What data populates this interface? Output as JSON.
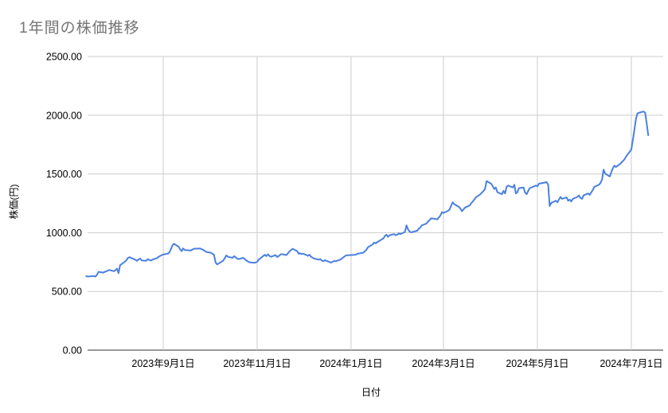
{
  "chart_data": {
    "type": "line",
    "title": "1年間の株価推移",
    "xlabel": "日付",
    "ylabel": "株価(円)",
    "ylim": [
      0,
      2500
    ],
    "grid": true,
    "legend_position": "none",
    "colors": {
      "line": "#4a80e0",
      "grid": "#cccccc",
      "baseline": "#333333",
      "tick_text": "#000000",
      "title_text": "#757575"
    },
    "y_ticks": [
      {
        "value": 0,
        "label": "0.00"
      },
      {
        "value": 500,
        "label": "500.00"
      },
      {
        "value": 1000,
        "label": "1000.00"
      },
      {
        "value": 1500,
        "label": "1500.00"
      },
      {
        "value": 2000,
        "label": "2000.00"
      },
      {
        "value": 2500,
        "label": "2500.00"
      }
    ],
    "x_ticks": [
      {
        "date": "2023-09-01",
        "label": "2023年9月1日"
      },
      {
        "date": "2023-11-01",
        "label": "2023年11月1日"
      },
      {
        "date": "2024-01-01",
        "label": "2024年1月1日"
      },
      {
        "date": "2024-03-01",
        "label": "2024年3月1日"
      },
      {
        "date": "2024-05-01",
        "label": "2024年5月1日"
      },
      {
        "date": "2024-07-01",
        "label": "2024年7月1日"
      }
    ],
    "series": [
      {
        "name": "株価",
        "points": [
          [
            "2023-07-13",
            630
          ],
          [
            "2023-07-14",
            627
          ],
          [
            "2023-07-18",
            631
          ],
          [
            "2023-07-19",
            626
          ],
          [
            "2023-07-20",
            642
          ],
          [
            "2023-07-21",
            667
          ],
          [
            "2023-07-24",
            660
          ],
          [
            "2023-07-25",
            666
          ],
          [
            "2023-07-26",
            671
          ],
          [
            "2023-07-27",
            677
          ],
          [
            "2023-07-28",
            682
          ],
          [
            "2023-07-31",
            672
          ],
          [
            "2023-08-01",
            680
          ],
          [
            "2023-08-02",
            694
          ],
          [
            "2023-08-03",
            655
          ],
          [
            "2023-08-04",
            723
          ],
          [
            "2023-08-07",
            752
          ],
          [
            "2023-08-08",
            764
          ],
          [
            "2023-08-09",
            784
          ],
          [
            "2023-08-10",
            791
          ],
          [
            "2023-08-14",
            768
          ],
          [
            "2023-08-15",
            761
          ],
          [
            "2023-08-16",
            773
          ],
          [
            "2023-08-17",
            780
          ],
          [
            "2023-08-18",
            764
          ],
          [
            "2023-08-21",
            761
          ],
          [
            "2023-08-22",
            775
          ],
          [
            "2023-08-23",
            768
          ],
          [
            "2023-08-24",
            762
          ],
          [
            "2023-08-25",
            770
          ],
          [
            "2023-08-28",
            784
          ],
          [
            "2023-08-29",
            795
          ],
          [
            "2023-08-30",
            802
          ],
          [
            "2023-08-31",
            809
          ],
          [
            "2023-09-01",
            814
          ],
          [
            "2023-09-04",
            822
          ],
          [
            "2023-09-05",
            832
          ],
          [
            "2023-09-06",
            859
          ],
          [
            "2023-09-07",
            893
          ],
          [
            "2023-09-08",
            905
          ],
          [
            "2023-09-11",
            881
          ],
          [
            "2023-09-12",
            859
          ],
          [
            "2023-09-13",
            843
          ],
          [
            "2023-09-14",
            866
          ],
          [
            "2023-09-15",
            852
          ],
          [
            "2023-09-19",
            848
          ],
          [
            "2023-09-20",
            857
          ],
          [
            "2023-09-21",
            863
          ],
          [
            "2023-09-25",
            866
          ],
          [
            "2023-09-26",
            859
          ],
          [
            "2023-09-27",
            854
          ],
          [
            "2023-09-28",
            845
          ],
          [
            "2023-09-29",
            836
          ],
          [
            "2023-10-02",
            829
          ],
          [
            "2023-10-03",
            820
          ],
          [
            "2023-10-04",
            812
          ],
          [
            "2023-10-05",
            746
          ],
          [
            "2023-10-06",
            730
          ],
          [
            "2023-10-10",
            762
          ],
          [
            "2023-10-11",
            784
          ],
          [
            "2023-10-12",
            807
          ],
          [
            "2023-10-13",
            795
          ],
          [
            "2023-10-16",
            786
          ],
          [
            "2023-10-17",
            800
          ],
          [
            "2023-10-18",
            791
          ],
          [
            "2023-10-19",
            780
          ],
          [
            "2023-10-20",
            775
          ],
          [
            "2023-10-23",
            786
          ],
          [
            "2023-10-24",
            775
          ],
          [
            "2023-10-25",
            764
          ],
          [
            "2023-10-26",
            755
          ],
          [
            "2023-10-27",
            748
          ],
          [
            "2023-10-30",
            744
          ],
          [
            "2023-10-31",
            746
          ],
          [
            "2023-11-01",
            752
          ],
          [
            "2023-11-02",
            770
          ],
          [
            "2023-11-06",
            812
          ],
          [
            "2023-11-07",
            800
          ],
          [
            "2023-11-08",
            816
          ],
          [
            "2023-11-09",
            802
          ],
          [
            "2023-11-10",
            795
          ],
          [
            "2023-11-13",
            809
          ],
          [
            "2023-11-14",
            793
          ],
          [
            "2023-11-15",
            800
          ],
          [
            "2023-11-16",
            812
          ],
          [
            "2023-11-17",
            818
          ],
          [
            "2023-11-20",
            809
          ],
          [
            "2023-11-21",
            825
          ],
          [
            "2023-11-22",
            841
          ],
          [
            "2023-11-24",
            863
          ],
          [
            "2023-11-27",
            843
          ],
          [
            "2023-11-28",
            820
          ],
          [
            "2023-11-29",
            825
          ],
          [
            "2023-11-30",
            818
          ],
          [
            "2023-12-01",
            821
          ],
          [
            "2023-12-04",
            803
          ],
          [
            "2023-12-05",
            812
          ],
          [
            "2023-12-06",
            795
          ],
          [
            "2023-12-07",
            788
          ],
          [
            "2023-12-08",
            780
          ],
          [
            "2023-12-11",
            770
          ],
          [
            "2023-12-12",
            775
          ],
          [
            "2023-12-13",
            762
          ],
          [
            "2023-12-14",
            757
          ],
          [
            "2023-12-15",
            766
          ],
          [
            "2023-12-18",
            750
          ],
          [
            "2023-12-19",
            745
          ],
          [
            "2023-12-20",
            752
          ],
          [
            "2023-12-21",
            760
          ],
          [
            "2023-12-22",
            757
          ],
          [
            "2023-12-25",
            770
          ],
          [
            "2023-12-26",
            780
          ],
          [
            "2023-12-27",
            790
          ],
          [
            "2023-12-28",
            800
          ],
          [
            "2023-12-29",
            807
          ],
          [
            "2024-01-04",
            812
          ],
          [
            "2024-01-05",
            820
          ],
          [
            "2024-01-09",
            830
          ],
          [
            "2024-01-10",
            843
          ],
          [
            "2024-01-11",
            855
          ],
          [
            "2024-01-12",
            877
          ],
          [
            "2024-01-15",
            900
          ],
          [
            "2024-01-16",
            916
          ],
          [
            "2024-01-17",
            909
          ],
          [
            "2024-01-18",
            920
          ],
          [
            "2024-01-19",
            927
          ],
          [
            "2024-01-22",
            952
          ],
          [
            "2024-01-23",
            972
          ],
          [
            "2024-01-24",
            983
          ],
          [
            "2024-01-25",
            965
          ],
          [
            "2024-01-26",
            978
          ],
          [
            "2024-01-29",
            988
          ],
          [
            "2024-01-30",
            978
          ],
          [
            "2024-01-31",
            983
          ],
          [
            "2024-02-01",
            994
          ],
          [
            "2024-02-02",
            988
          ],
          [
            "2024-02-05",
            1006
          ],
          [
            "2024-02-06",
            1062
          ],
          [
            "2024-02-07",
            1028
          ],
          [
            "2024-02-08",
            1010
          ],
          [
            "2024-02-09",
            1003
          ],
          [
            "2024-02-13",
            1017
          ],
          [
            "2024-02-14",
            1033
          ],
          [
            "2024-02-15",
            1046
          ],
          [
            "2024-02-16",
            1062
          ],
          [
            "2024-02-19",
            1078
          ],
          [
            "2024-02-20",
            1096
          ],
          [
            "2024-02-21",
            1107
          ],
          [
            "2024-02-22",
            1123
          ],
          [
            "2024-02-26",
            1114
          ],
          [
            "2024-02-27",
            1130
          ],
          [
            "2024-02-28",
            1146
          ],
          [
            "2024-02-29",
            1175
          ],
          [
            "2024-03-01",
            1168
          ],
          [
            "2024-03-04",
            1186
          ],
          [
            "2024-03-05",
            1198
          ],
          [
            "2024-03-06",
            1232
          ],
          [
            "2024-03-07",
            1259
          ],
          [
            "2024-03-08",
            1243
          ],
          [
            "2024-03-11",
            1220
          ],
          [
            "2024-03-12",
            1205
          ],
          [
            "2024-03-13",
            1182
          ],
          [
            "2024-03-14",
            1198
          ],
          [
            "2024-03-15",
            1214
          ],
          [
            "2024-03-18",
            1232
          ],
          [
            "2024-03-19",
            1250
          ],
          [
            "2024-03-21",
            1282
          ],
          [
            "2024-03-22",
            1300
          ],
          [
            "2024-03-25",
            1327
          ],
          [
            "2024-03-26",
            1341
          ],
          [
            "2024-03-27",
            1356
          ],
          [
            "2024-03-28",
            1372
          ],
          [
            "2024-03-29",
            1440
          ],
          [
            "2024-04-01",
            1417
          ],
          [
            "2024-04-02",
            1395
          ],
          [
            "2024-04-03",
            1372
          ],
          [
            "2024-04-04",
            1385
          ],
          [
            "2024-04-05",
            1345
          ],
          [
            "2024-04-08",
            1327
          ],
          [
            "2024-04-09",
            1356
          ],
          [
            "2024-04-10",
            1334
          ],
          [
            "2024-04-11",
            1390
          ],
          [
            "2024-04-12",
            1401
          ],
          [
            "2024-04-15",
            1385
          ],
          [
            "2024-04-16",
            1408
          ],
          [
            "2024-04-17",
            1334
          ],
          [
            "2024-04-18",
            1345
          ],
          [
            "2024-04-19",
            1379
          ],
          [
            "2024-04-22",
            1385
          ],
          [
            "2024-04-23",
            1341
          ],
          [
            "2024-04-24",
            1327
          ],
          [
            "2024-04-25",
            1356
          ],
          [
            "2024-04-26",
            1379
          ],
          [
            "2024-04-30",
            1401
          ],
          [
            "2024-05-01",
            1395
          ],
          [
            "2024-05-02",
            1417
          ],
          [
            "2024-05-07",
            1430
          ],
          [
            "2024-05-08",
            1408
          ],
          [
            "2024-05-09",
            1227
          ],
          [
            "2024-05-10",
            1254
          ],
          [
            "2024-05-13",
            1272
          ],
          [
            "2024-05-14",
            1259
          ],
          [
            "2024-05-15",
            1282
          ],
          [
            "2024-05-16",
            1304
          ],
          [
            "2024-05-17",
            1288
          ],
          [
            "2024-05-20",
            1300
          ],
          [
            "2024-05-21",
            1272
          ],
          [
            "2024-05-22",
            1282
          ],
          [
            "2024-05-23",
            1266
          ],
          [
            "2024-05-24",
            1288
          ],
          [
            "2024-05-27",
            1304
          ],
          [
            "2024-05-28",
            1317
          ],
          [
            "2024-05-29",
            1295
          ],
          [
            "2024-05-30",
            1288
          ],
          [
            "2024-05-31",
            1317
          ],
          [
            "2024-06-03",
            1334
          ],
          [
            "2024-06-04",
            1322
          ],
          [
            "2024-06-05",
            1345
          ],
          [
            "2024-06-06",
            1363
          ],
          [
            "2024-06-07",
            1390
          ],
          [
            "2024-06-10",
            1408
          ],
          [
            "2024-06-11",
            1424
          ],
          [
            "2024-06-12",
            1453
          ],
          [
            "2024-06-13",
            1537
          ],
          [
            "2024-06-14",
            1503
          ],
          [
            "2024-06-17",
            1478
          ],
          [
            "2024-06-18",
            1514
          ],
          [
            "2024-06-19",
            1548
          ],
          [
            "2024-06-20",
            1571
          ],
          [
            "2024-06-21",
            1559
          ],
          [
            "2024-06-24",
            1588
          ],
          [
            "2024-06-25",
            1604
          ],
          [
            "2024-06-26",
            1615
          ],
          [
            "2024-06-27",
            1634
          ],
          [
            "2024-06-28",
            1656
          ],
          [
            "2024-07-01",
            1707
          ],
          [
            "2024-07-02",
            1791
          ],
          [
            "2024-07-03",
            1876
          ],
          [
            "2024-07-04",
            1966
          ],
          [
            "2024-07-05",
            2016
          ],
          [
            "2024-07-08",
            2029
          ],
          [
            "2024-07-09",
            2031
          ],
          [
            "2024-07-10",
            2022
          ],
          [
            "2024-07-11",
            1927
          ],
          [
            "2024-07-12",
            1830
          ]
        ]
      }
    ]
  }
}
